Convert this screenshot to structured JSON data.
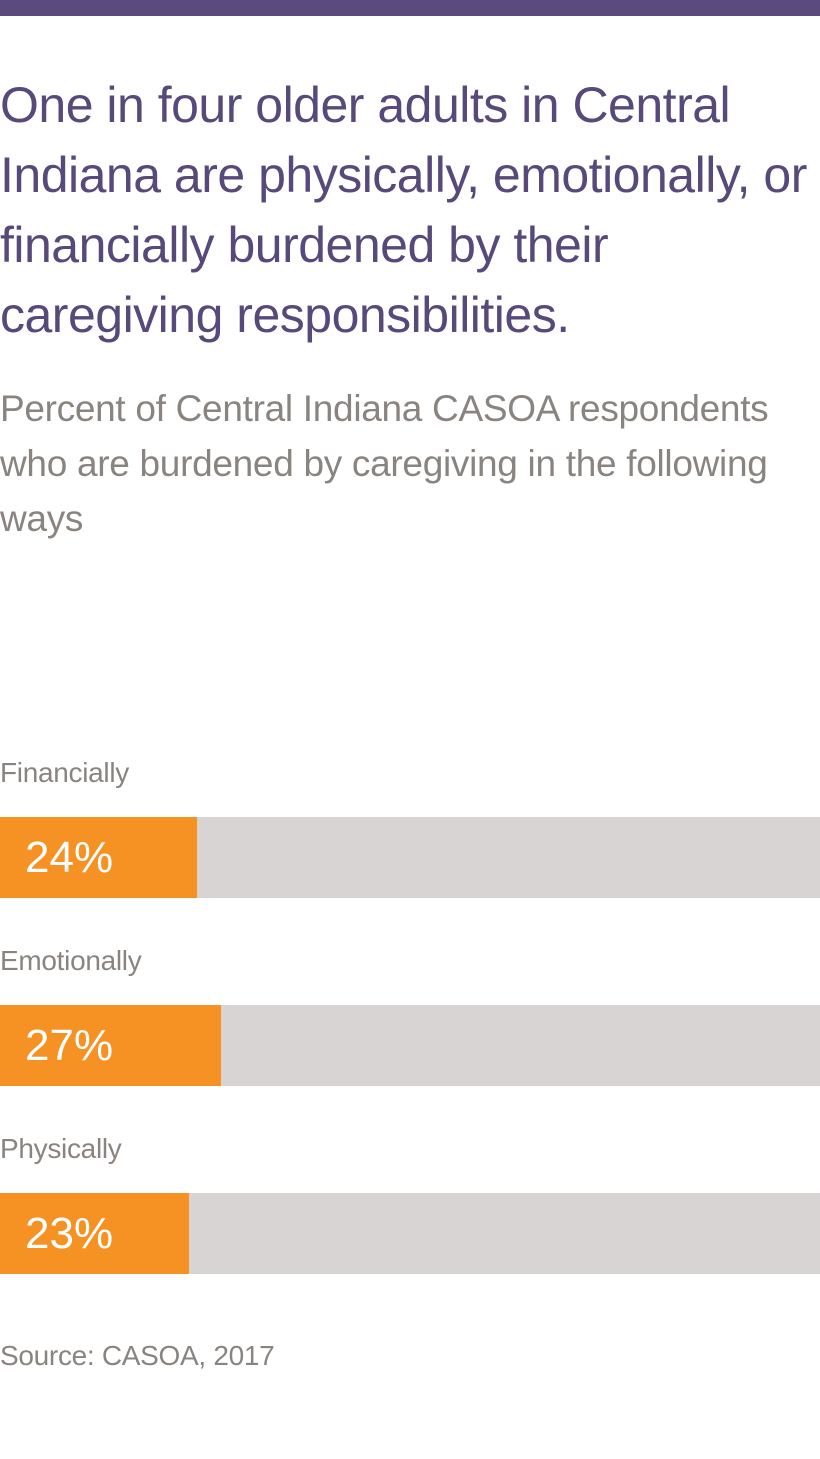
{
  "headline": "One in four older adults in Central Indiana are physically, emotionally, or financially burdened by their caregiving responsibilities.",
  "subtitle": "Percent of Central Indiana CASOA respondents who are burdened by caregiving in the following ways",
  "source": "Source: CASOA, 2017",
  "colors": {
    "accent_bar": "#5b4a7e",
    "headline": "#574a7b",
    "text_gray": "#8a8480",
    "bar_fill": "#f59223",
    "bar_track": "#d8d4d3",
    "value_text": "#ffffff"
  },
  "chart_data": {
    "type": "bar",
    "orientation": "horizontal",
    "categories": [
      "Financially",
      "Emotionally",
      "Physically"
    ],
    "values": [
      24,
      27,
      23
    ],
    "value_labels": [
      "24%",
      "27%",
      "23%"
    ],
    "xlim": [
      0,
      100
    ],
    "grid": false,
    "legend": "none"
  }
}
